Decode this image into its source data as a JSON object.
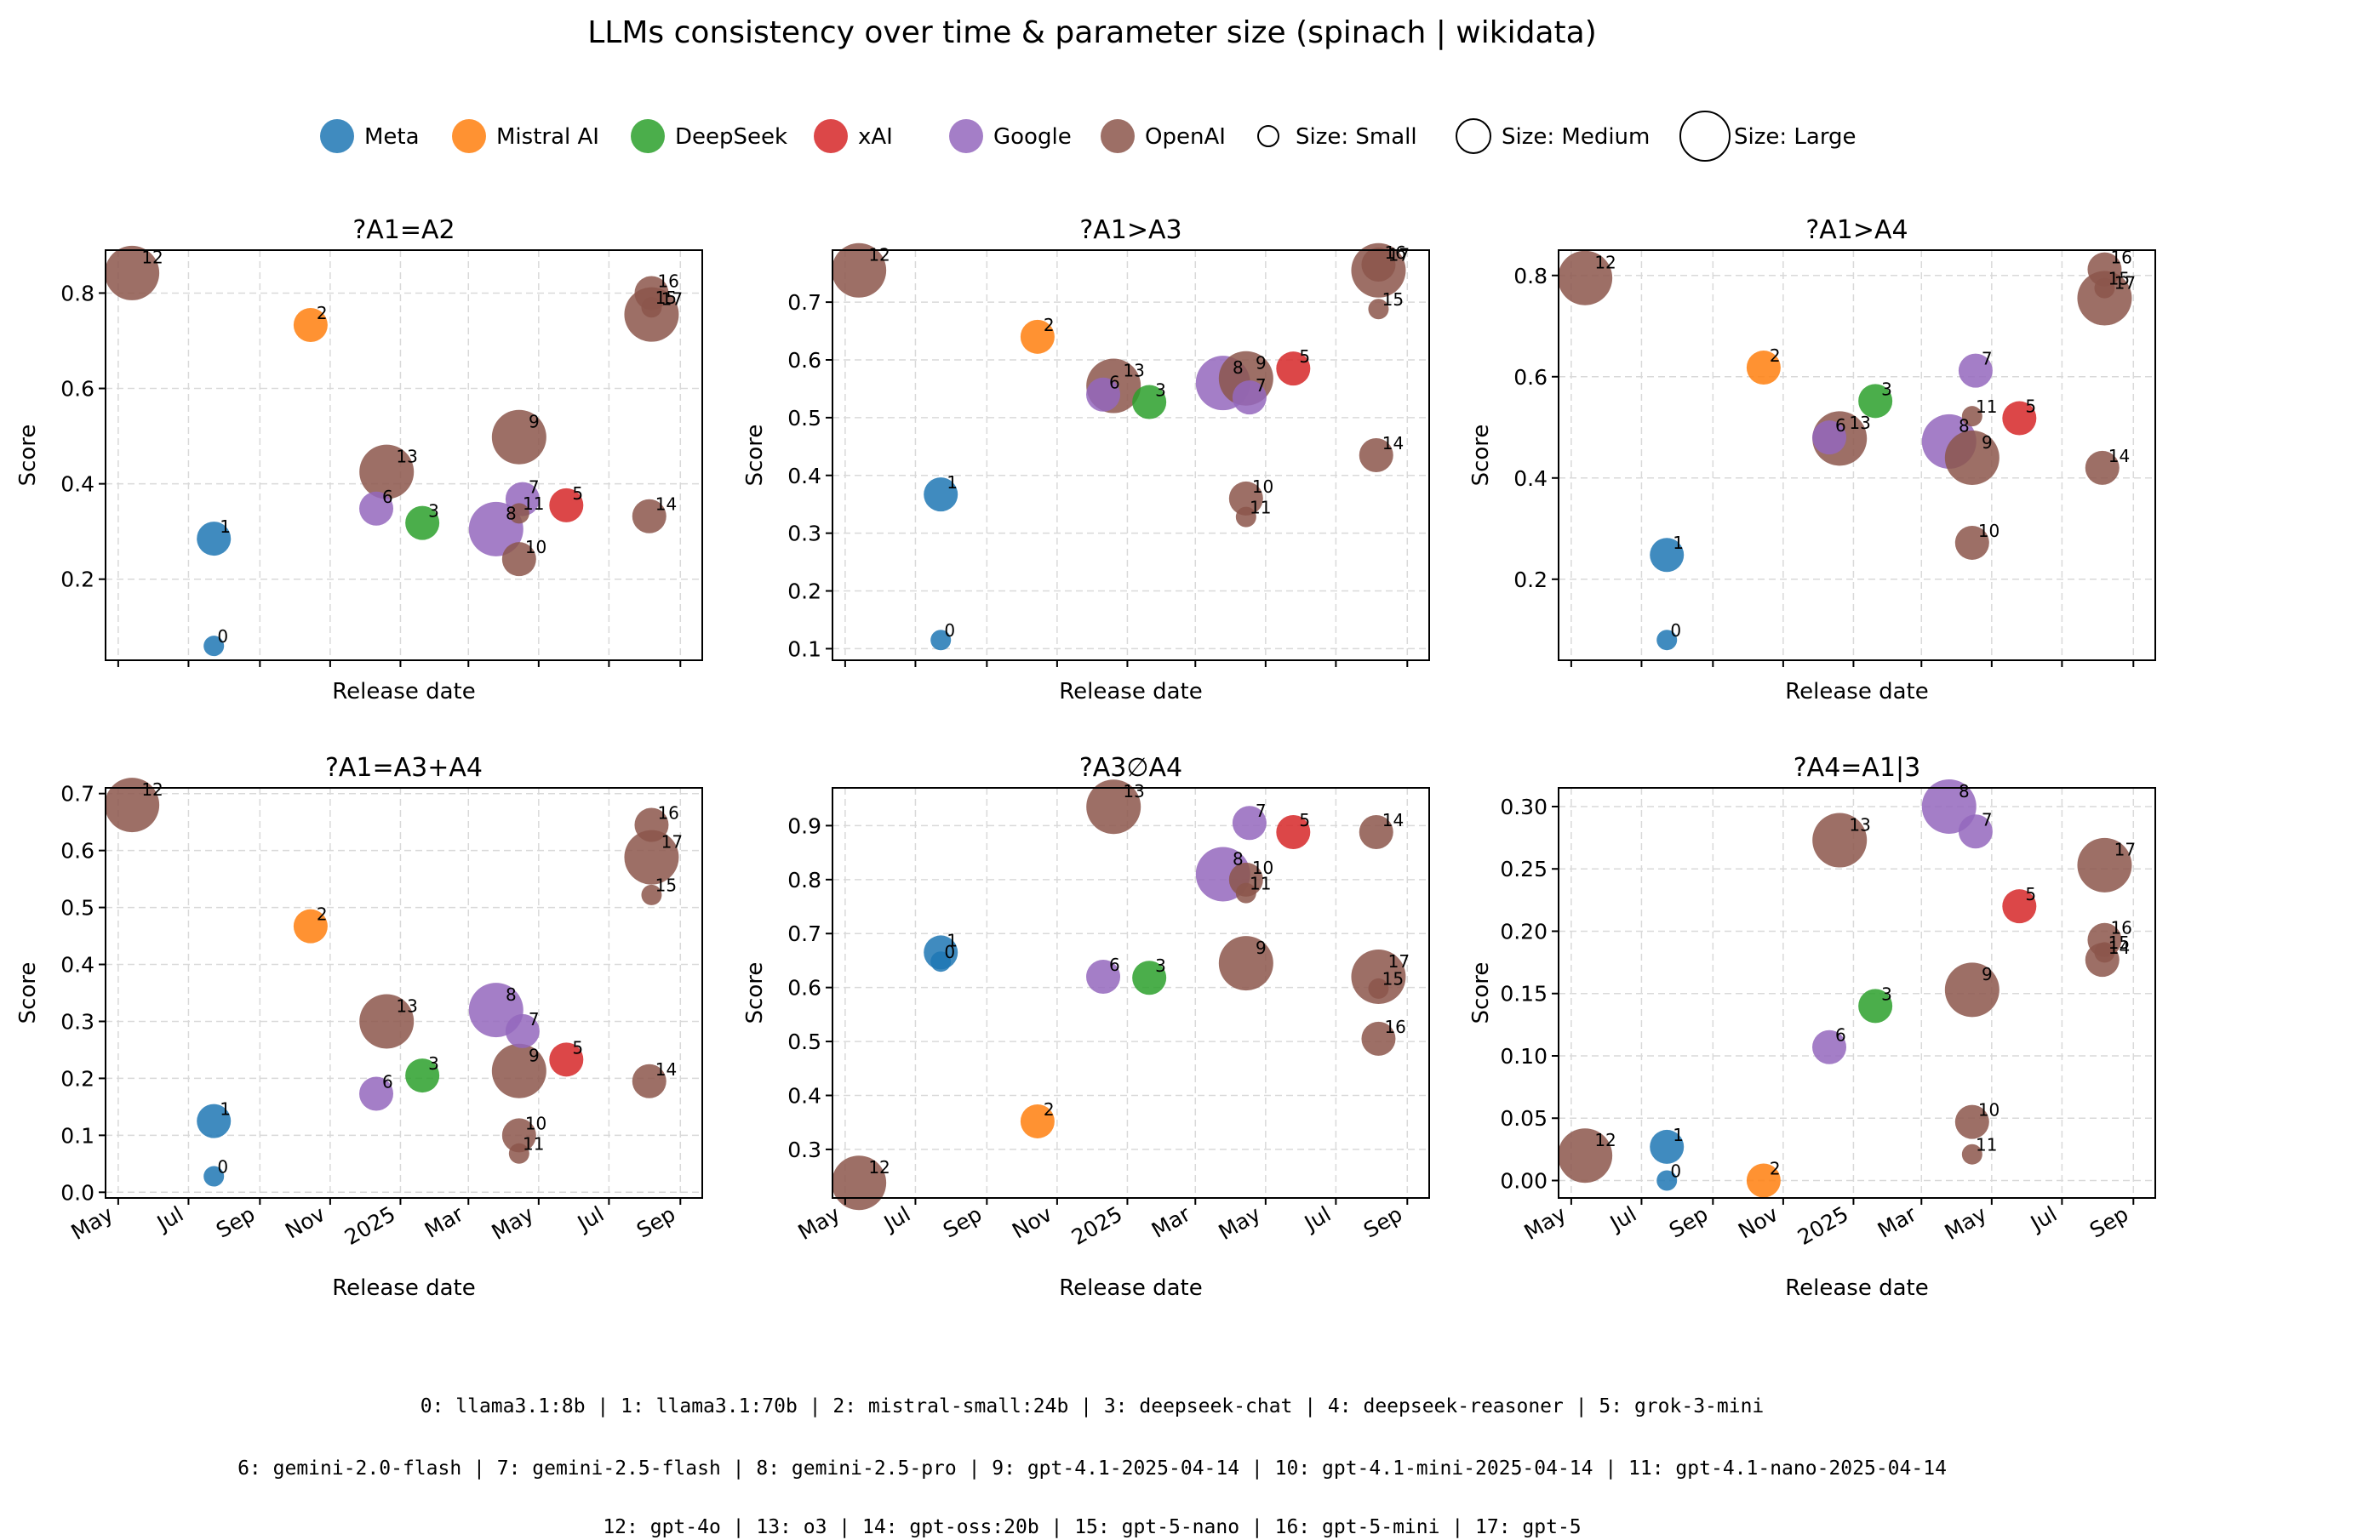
{
  "figure": {
    "title": "LLMs consistency over time & parameter size  (spinach | wikidata)"
  },
  "legend": {
    "companies": [
      {
        "name": "Meta",
        "color": "#1f77b4"
      },
      {
        "name": "Mistral AI",
        "color": "#ff7f0e"
      },
      {
        "name": "DeepSeek",
        "color": "#2ca02c"
      },
      {
        "name": "xAI",
        "color": "#d62728"
      },
      {
        "name": "Google",
        "color": "#9467bd"
      },
      {
        "name": "OpenAI",
        "color": "#8c564b"
      }
    ],
    "sizes": [
      {
        "name": "Size: Small",
        "key": "S"
      },
      {
        "name": "Size: Medium",
        "key": "M"
      },
      {
        "name": "Size: Large",
        "key": "L"
      }
    ]
  },
  "models": [
    {
      "id": 0,
      "name": "llama3.1:8b",
      "company": "Meta",
      "size": "S",
      "date": "2024-07-23"
    },
    {
      "id": 1,
      "name": "llama3.1:70b",
      "company": "Meta",
      "size": "M",
      "date": "2024-07-23"
    },
    {
      "id": 2,
      "name": "mistral-small:24b",
      "company": "Mistral AI",
      "size": "M",
      "date": "2024-10-15"
    },
    {
      "id": 3,
      "name": "deepseek-chat",
      "company": "DeepSeek",
      "size": "M",
      "date": "2025-01-20"
    },
    {
      "id": 4,
      "name": "deepseek-reasoner",
      "company": "DeepSeek",
      "size": "L",
      "date": "2025-01-20"
    },
    {
      "id": 5,
      "name": "grok-3-mini",
      "company": "xAI",
      "size": "M",
      "date": "2025-05-25"
    },
    {
      "id": 6,
      "name": "gemini-2.0-flash",
      "company": "Google",
      "size": "M",
      "date": "2024-12-11"
    },
    {
      "id": 7,
      "name": "gemini-2.5-flash",
      "company": "Google",
      "size": "M",
      "date": "2025-04-17"
    },
    {
      "id": 8,
      "name": "gemini-2.5-pro",
      "company": "Google",
      "size": "L",
      "date": "2025-03-25"
    },
    {
      "id": 9,
      "name": "gpt-4.1-2025-04-14",
      "company": "OpenAI",
      "size": "L",
      "date": "2025-04-14"
    },
    {
      "id": 10,
      "name": "gpt-4.1-mini-2025-04-14",
      "company": "OpenAI",
      "size": "M",
      "date": "2025-04-14"
    },
    {
      "id": 11,
      "name": "gpt-4.1-nano-2025-04-14",
      "company": "OpenAI",
      "size": "S",
      "date": "2025-04-14"
    },
    {
      "id": 12,
      "name": "gpt-4o",
      "company": "OpenAI",
      "size": "L",
      "date": "2024-05-13"
    },
    {
      "id": 13,
      "name": "o3",
      "company": "OpenAI",
      "size": "L",
      "date": "2024-12-20"
    },
    {
      "id": 14,
      "name": "gpt-oss:20b",
      "company": "OpenAI",
      "size": "M",
      "date": "2025-08-05"
    },
    {
      "id": 15,
      "name": "gpt-5-nano",
      "company": "OpenAI",
      "size": "S",
      "date": "2025-08-07"
    },
    {
      "id": 16,
      "name": "gpt-5-mini",
      "company": "OpenAI",
      "size": "M",
      "date": "2025-08-07"
    },
    {
      "id": 17,
      "name": "gpt-5",
      "company": "OpenAI",
      "size": "L",
      "date": "2025-08-07"
    }
  ],
  "footer": {
    "lines": [
      "0: llama3.1:8b |  1: llama3.1:70b |  2: mistral-small:24b |  3: deepseek-chat |  4: deepseek-reasoner |  5: grok-3-mini",
      "6: gemini-2.0-flash |  7: gemini-2.5-flash |  8: gemini-2.5-pro |  9: gpt-4.1-2025-04-14 | 10: gpt-4.1-mini-2025-04-14 | 11: gpt-4.1-nano-2025-04-14",
      "12: gpt-4o | 13: o3 | 14: gpt-oss:20b | 15: gpt-5-nano | 16: gpt-5-mini | 17: gpt-5"
    ]
  },
  "chart_data": [
    {
      "type": "scatter",
      "title": "?A1=A2",
      "xlabel": "Release date",
      "ylabel": "Score",
      "xlim": [
        "2024-04-20",
        "2025-09-20"
      ],
      "ylim": [
        0.03,
        0.89
      ],
      "yticks": [
        0.2,
        0.4,
        0.6,
        0.8
      ],
      "ytick_labels": [
        "0.2",
        "0.4",
        "0.6",
        "0.8"
      ],
      "xtick_labels_visible": false,
      "grid": true,
      "points": [
        {
          "id": 0,
          "y": 0.06
        },
        {
          "id": 1,
          "y": 0.285
        },
        {
          "id": 2,
          "y": 0.733
        },
        {
          "id": 3,
          "y": 0.318
        },
        {
          "id": 5,
          "y": 0.355
        },
        {
          "id": 6,
          "y": 0.348
        },
        {
          "id": 7,
          "y": 0.368
        },
        {
          "id": 8,
          "y": 0.305
        },
        {
          "id": 9,
          "y": 0.498
        },
        {
          "id": 10,
          "y": 0.242
        },
        {
          "id": 11,
          "y": 0.338
        },
        {
          "id": 12,
          "y": 0.842
        },
        {
          "id": 13,
          "y": 0.425
        },
        {
          "id": 14,
          "y": 0.332
        },
        {
          "id": 15,
          "y": 0.77
        },
        {
          "id": 16,
          "y": 0.8
        },
        {
          "id": 17,
          "y": 0.755
        }
      ]
    },
    {
      "type": "scatter",
      "title": "?A1>A3",
      "xlabel": "Release date",
      "ylabel": "Score",
      "xlim": [
        "2024-04-20",
        "2025-09-20"
      ],
      "ylim": [
        0.08,
        0.79
      ],
      "yticks": [
        0.1,
        0.2,
        0.3,
        0.4,
        0.5,
        0.6,
        0.7
      ],
      "ytick_labels": [
        "0.1",
        "0.2",
        "0.3",
        "0.4",
        "0.5",
        "0.6",
        "0.7"
      ],
      "xtick_labels_visible": false,
      "grid": true,
      "points": [
        {
          "id": 0,
          "y": 0.115
        },
        {
          "id": 1,
          "y": 0.367
        },
        {
          "id": 2,
          "y": 0.64
        },
        {
          "id": 3,
          "y": 0.527
        },
        {
          "id": 5,
          "y": 0.585
        },
        {
          "id": 6,
          "y": 0.54
        },
        {
          "id": 7,
          "y": 0.535
        },
        {
          "id": 8,
          "y": 0.56
        },
        {
          "id": 9,
          "y": 0.568
        },
        {
          "id": 10,
          "y": 0.36
        },
        {
          "id": 11,
          "y": 0.328
        },
        {
          "id": 12,
          "y": 0.755
        },
        {
          "id": 13,
          "y": 0.555
        },
        {
          "id": 14,
          "y": 0.435
        },
        {
          "id": 15,
          "y": 0.688
        },
        {
          "id": 16,
          "y": 0.765
        },
        {
          "id": 17,
          "y": 0.755
        }
      ]
    },
    {
      "type": "scatter",
      "title": "?A1>A4",
      "xlabel": "Release date",
      "ylabel": "Score",
      "xlim": [
        "2024-04-20",
        "2025-09-20"
      ],
      "ylim": [
        0.04,
        0.85
      ],
      "yticks": [
        0.2,
        0.4,
        0.6,
        0.8
      ],
      "ytick_labels": [
        "0.2",
        "0.4",
        "0.6",
        "0.8"
      ],
      "xtick_labels_visible": false,
      "grid": true,
      "points": [
        {
          "id": 0,
          "y": 0.08
        },
        {
          "id": 1,
          "y": 0.248
        },
        {
          "id": 2,
          "y": 0.618
        },
        {
          "id": 3,
          "y": 0.552
        },
        {
          "id": 5,
          "y": 0.518
        },
        {
          "id": 6,
          "y": 0.48
        },
        {
          "id": 7,
          "y": 0.612
        },
        {
          "id": 8,
          "y": 0.472
        },
        {
          "id": 9,
          "y": 0.44
        },
        {
          "id": 10,
          "y": 0.272
        },
        {
          "id": 11,
          "y": 0.522
        },
        {
          "id": 12,
          "y": 0.795
        },
        {
          "id": 13,
          "y": 0.478
        },
        {
          "id": 14,
          "y": 0.42
        },
        {
          "id": 15,
          "y": 0.775
        },
        {
          "id": 16,
          "y": 0.812
        },
        {
          "id": 17,
          "y": 0.755
        }
      ]
    },
    {
      "type": "scatter",
      "title": "?A1=A3+A4",
      "xlabel": "Release date",
      "ylabel": "Score",
      "xlim": [
        "2024-04-20",
        "2025-09-20"
      ],
      "ylim": [
        -0.01,
        0.71
      ],
      "yticks": [
        0.0,
        0.1,
        0.2,
        0.3,
        0.4,
        0.5,
        0.6,
        0.7
      ],
      "ytick_labels": [
        "0.0",
        "0.1",
        "0.2",
        "0.3",
        "0.4",
        "0.5",
        "0.6",
        "0.7"
      ],
      "xtick_labels_visible": true,
      "grid": true,
      "points": [
        {
          "id": 0,
          "y": 0.028
        },
        {
          "id": 1,
          "y": 0.125
        },
        {
          "id": 2,
          "y": 0.467
        },
        {
          "id": 3,
          "y": 0.205
        },
        {
          "id": 5,
          "y": 0.233
        },
        {
          "id": 6,
          "y": 0.173
        },
        {
          "id": 7,
          "y": 0.283
        },
        {
          "id": 8,
          "y": 0.32
        },
        {
          "id": 9,
          "y": 0.213
        },
        {
          "id": 10,
          "y": 0.1
        },
        {
          "id": 11,
          "y": 0.068
        },
        {
          "id": 12,
          "y": 0.68
        },
        {
          "id": 13,
          "y": 0.3
        },
        {
          "id": 14,
          "y": 0.195
        },
        {
          "id": 15,
          "y": 0.522
        },
        {
          "id": 16,
          "y": 0.645
        },
        {
          "id": 17,
          "y": 0.588
        }
      ]
    },
    {
      "type": "scatter",
      "title": "?A3∅A4",
      "xlabel": "Release date",
      "ylabel": "Score",
      "xlim": [
        "2024-04-20",
        "2025-09-20"
      ],
      "ylim": [
        0.21,
        0.97
      ],
      "yticks": [
        0.3,
        0.4,
        0.5,
        0.6,
        0.7,
        0.8,
        0.9
      ],
      "ytick_labels": [
        "0.3",
        "0.4",
        "0.5",
        "0.6",
        "0.7",
        "0.8",
        "0.9"
      ],
      "xtick_labels_visible": true,
      "grid": true,
      "points": [
        {
          "id": 0,
          "y": 0.648
        },
        {
          "id": 1,
          "y": 0.665
        },
        {
          "id": 2,
          "y": 0.352
        },
        {
          "id": 3,
          "y": 0.618
        },
        {
          "id": 5,
          "y": 0.888
        },
        {
          "id": 6,
          "y": 0.62
        },
        {
          "id": 7,
          "y": 0.905
        },
        {
          "id": 8,
          "y": 0.81
        },
        {
          "id": 9,
          "y": 0.645
        },
        {
          "id": 10,
          "y": 0.8
        },
        {
          "id": 11,
          "y": 0.775
        },
        {
          "id": 12,
          "y": 0.238
        },
        {
          "id": 13,
          "y": 0.935
        },
        {
          "id": 14,
          "y": 0.888
        },
        {
          "id": 15,
          "y": 0.598
        },
        {
          "id": 16,
          "y": 0.505
        },
        {
          "id": 17,
          "y": 0.62
        }
      ]
    },
    {
      "type": "scatter",
      "title": "?A4=A1|3",
      "xlabel": "Release date",
      "ylabel": "Score",
      "xlim": [
        "2024-04-20",
        "2025-09-20"
      ],
      "ylim": [
        -0.014,
        0.315
      ],
      "yticks": [
        0.0,
        0.05,
        0.1,
        0.15,
        0.2,
        0.25,
        0.3
      ],
      "ytick_labels": [
        "0.00",
        "0.05",
        "0.10",
        "0.15",
        "0.20",
        "0.25",
        "0.30"
      ],
      "xtick_labels_visible": true,
      "grid": true,
      "points": [
        {
          "id": 0,
          "y": 0.0
        },
        {
          "id": 1,
          "y": 0.027
        },
        {
          "id": 2,
          "y": 0.0
        },
        {
          "id": 3,
          "y": 0.14
        },
        {
          "id": 5,
          "y": 0.22
        },
        {
          "id": 6,
          "y": 0.107
        },
        {
          "id": 7,
          "y": 0.28
        },
        {
          "id": 8,
          "y": 0.3
        },
        {
          "id": 9,
          "y": 0.153
        },
        {
          "id": 10,
          "y": 0.047
        },
        {
          "id": 11,
          "y": 0.021
        },
        {
          "id": 12,
          "y": 0.02
        },
        {
          "id": 13,
          "y": 0.273
        },
        {
          "id": 14,
          "y": 0.177
        },
        {
          "id": 15,
          "y": 0.183
        },
        {
          "id": 16,
          "y": 0.193
        },
        {
          "id": 17,
          "y": 0.253
        }
      ]
    }
  ],
  "xticks": [
    {
      "date": "2024-05-01",
      "label": "May"
    },
    {
      "date": "2024-07-01",
      "label": "Jul"
    },
    {
      "date": "2024-09-01",
      "label": "Sep"
    },
    {
      "date": "2024-11-01",
      "label": "Nov"
    },
    {
      "date": "2025-01-01",
      "label": "2025"
    },
    {
      "date": "2025-03-01",
      "label": "Mar"
    },
    {
      "date": "2025-05-01",
      "label": "May"
    },
    {
      "date": "2025-07-01",
      "label": "Jul"
    },
    {
      "date": "2025-09-01",
      "label": "Sep"
    }
  ]
}
